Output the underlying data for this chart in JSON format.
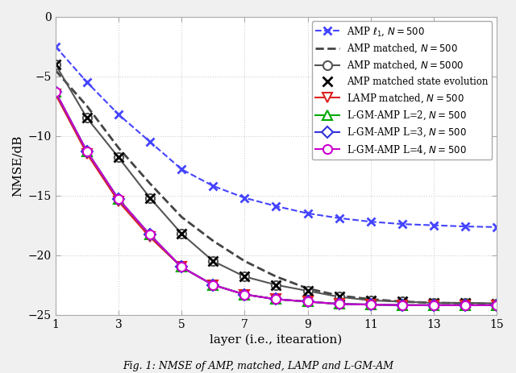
{
  "x": [
    1,
    2,
    3,
    4,
    5,
    6,
    7,
    8,
    9,
    10,
    11,
    12,
    13,
    14,
    15
  ],
  "amp_l1": [
    -2.5,
    -5.5,
    -8.2,
    -10.5,
    -12.8,
    -14.2,
    -15.2,
    -15.9,
    -16.5,
    -16.9,
    -17.2,
    -17.4,
    -17.5,
    -17.6,
    -17.65
  ],
  "amp_matched_500": [
    -4.5,
    -7.5,
    -11.0,
    -14.0,
    -16.8,
    -18.8,
    -20.5,
    -21.8,
    -22.8,
    -23.4,
    -23.7,
    -23.9,
    -24.0,
    -24.05,
    -24.1
  ],
  "amp_matched_5000": [
    -4.0,
    -8.5,
    -11.8,
    -15.2,
    -18.2,
    -20.5,
    -21.8,
    -22.5,
    -23.0,
    -23.5,
    -23.8,
    -23.9,
    -24.0,
    -24.0,
    -24.05
  ],
  "amp_state_evo": [
    -4.0,
    -8.5,
    -11.8,
    -15.2,
    -18.2,
    -20.5,
    -21.8,
    -22.5,
    -23.0,
    -23.5,
    -23.8,
    -23.9,
    -24.0,
    -24.0,
    -24.05
  ],
  "lamp_matched": [
    -6.5,
    -11.5,
    -15.5,
    -18.5,
    -21.0,
    -22.5,
    -23.3,
    -23.7,
    -23.9,
    -24.1,
    -24.15,
    -24.2,
    -24.2,
    -24.2,
    -24.2
  ],
  "lgm_l2": [
    -6.3,
    -11.3,
    -15.3,
    -18.3,
    -21.0,
    -22.5,
    -23.3,
    -23.7,
    -23.9,
    -24.1,
    -24.15,
    -24.2,
    -24.2,
    -24.2,
    -24.2
  ],
  "lgm_l3": [
    -6.3,
    -11.3,
    -15.3,
    -18.3,
    -21.0,
    -22.5,
    -23.3,
    -23.7,
    -23.9,
    -24.1,
    -24.15,
    -24.2,
    -24.2,
    -24.2,
    -24.2
  ],
  "lgm_l4": [
    -6.3,
    -11.3,
    -15.3,
    -18.3,
    -21.0,
    -22.5,
    -23.3,
    -23.7,
    -23.9,
    -24.1,
    -24.15,
    -24.2,
    -24.2,
    -24.2,
    -24.2
  ],
  "ylim": [
    -25,
    0
  ],
  "xlim": [
    1,
    15
  ],
  "yticks": [
    0,
    -5,
    -10,
    -15,
    -20,
    -25
  ],
  "xticks": [
    1,
    3,
    5,
    7,
    9,
    11,
    13,
    15
  ],
  "xlabel": "layer (i.e., itearation)",
  "ylabel": "NMSE/dB",
  "bg_color": "#f0f0f0",
  "plot_bg_color": "#ffffff",
  "grid_color": "#d0d0d0",
  "amp_l1_color": "#4444ff",
  "amp_matched_500_color": "#444444",
  "amp_matched_5000_color": "#555555",
  "amp_state_evo_color": "#000000",
  "lamp_color": "#dd2222",
  "lgm_l2_color": "#00aa00",
  "lgm_l3_color": "#3333dd",
  "lgm_l4_color": "#cc00cc",
  "caption": "Fig. 1: NMSE of AMP, matched, LAMP and L-GM-AM"
}
